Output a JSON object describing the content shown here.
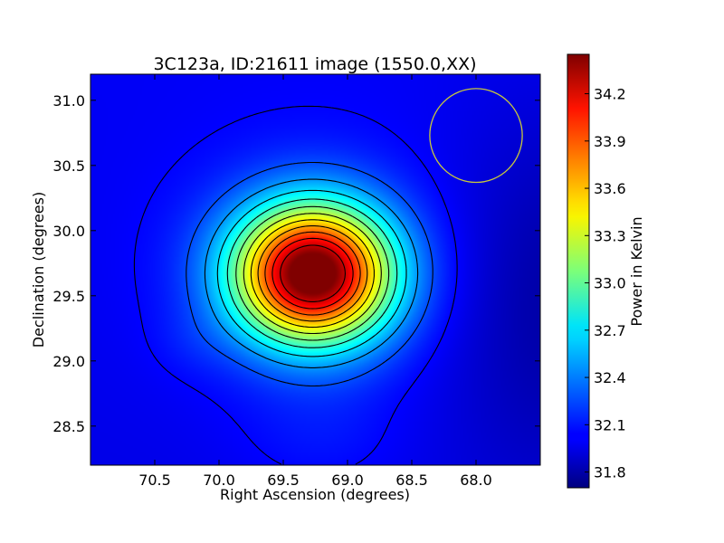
{
  "chart_data": {
    "type": "heatmap",
    "title": "3C123a, ID:21611 image (1550.0,XX)",
    "xlabel": "Right Ascension (degrees)",
    "ylabel": "Declination (degrees)",
    "colorbar_label": "Power in Kelvin",
    "xlim": [
      71.0,
      67.5
    ],
    "ylim": [
      28.2,
      31.2
    ],
    "x_axis_inverted": true,
    "xticks": [
      "70.5",
      "70.0",
      "69.5",
      "69.0",
      "68.5",
      "68.0"
    ],
    "xtick_values": [
      70.5,
      70.0,
      69.5,
      69.0,
      68.5,
      68.0
    ],
    "yticks": [
      "28.5",
      "29.0",
      "29.5",
      "30.0",
      "30.5",
      "31.0"
    ],
    "ytick_values": [
      28.5,
      29.0,
      29.5,
      30.0,
      30.5,
      31.0
    ],
    "colorbar_range": [
      31.7,
      34.45
    ],
    "colorbar_ticks": [
      "31.8",
      "32.1",
      "32.4",
      "32.7",
      "33.0",
      "33.3",
      "33.6",
      "33.9",
      "34.2"
    ],
    "colorbar_tick_values": [
      31.8,
      32.1,
      32.4,
      32.7,
      33.0,
      33.3,
      33.6,
      33.9,
      34.2
    ],
    "colormap": "jet",
    "peak": {
      "ra": 69.27,
      "dec": 29.67,
      "value": 34.45
    },
    "background_level": 32.0,
    "contour_color": "#000000",
    "beam_circle": {
      "ra": 68.0,
      "dec": 30.73,
      "radius_deg": 0.36,
      "color": "#c8c83c"
    },
    "grid": false
  }
}
